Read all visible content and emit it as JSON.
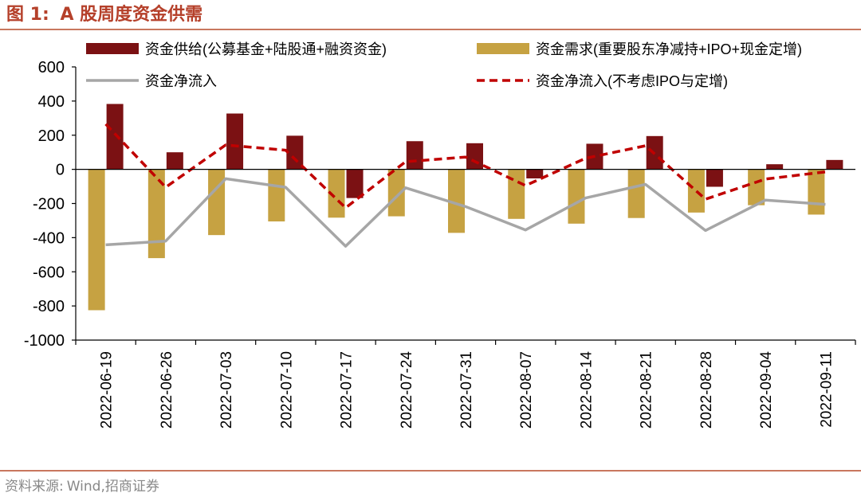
{
  "figure": {
    "label": "图 1:",
    "title": "A 股周度资金供需",
    "source_label": "资料来源:",
    "source_text": "Wind,招商证券"
  },
  "colors": {
    "supply": "#7b1113",
    "demand": "#c6a242",
    "net": "#a6a6a6",
    "net_ex": "#c00000",
    "title": "#b5402a",
    "rule": "#c8775e"
  },
  "chart_data": {
    "type": "bar",
    "title": "",
    "xlabel": "",
    "ylabel": "",
    "ylim": [
      -1000,
      600
    ],
    "yticks": [
      600,
      400,
      200,
      0,
      -200,
      -400,
      -600,
      -800,
      -1000
    ],
    "grid": false,
    "legend_position": "top",
    "categories": [
      "2022-06-19",
      "2022-06-26",
      "2022-07-03",
      "2022-07-10",
      "2022-07-17",
      "2022-07-24",
      "2022-07-31",
      "2022-08-07",
      "2022-08-14",
      "2022-08-21",
      "2022-08-28",
      "2022-09-04",
      "2022-09-11"
    ],
    "series": [
      {
        "name": "资金供给(公募基金+陆股通+融资资金)",
        "kind": "bar",
        "values": [
          383,
          100,
          327,
          197,
          -168,
          165,
          153,
          -53,
          150,
          195,
          -102,
          30,
          55
        ]
      },
      {
        "name": "资金需求(重要股东净减持+IPO+现金定增)",
        "kind": "bar",
        "values": [
          -825,
          -520,
          -385,
          -305,
          -283,
          -275,
          -372,
          -290,
          -318,
          -285,
          -253,
          -210,
          -265
        ]
      },
      {
        "name": "资金净流入",
        "kind": "line",
        "values": [
          -442,
          -420,
          -55,
          -105,
          -450,
          -108,
          -218,
          -355,
          -168,
          -88,
          -358,
          -180,
          -205
        ]
      },
      {
        "name": "资金净流入(不考虑IPO与定增)",
        "kind": "line-dashed",
        "values": [
          265,
          -105,
          143,
          112,
          -225,
          45,
          72,
          -95,
          65,
          138,
          -175,
          -57,
          -15
        ]
      }
    ]
  }
}
